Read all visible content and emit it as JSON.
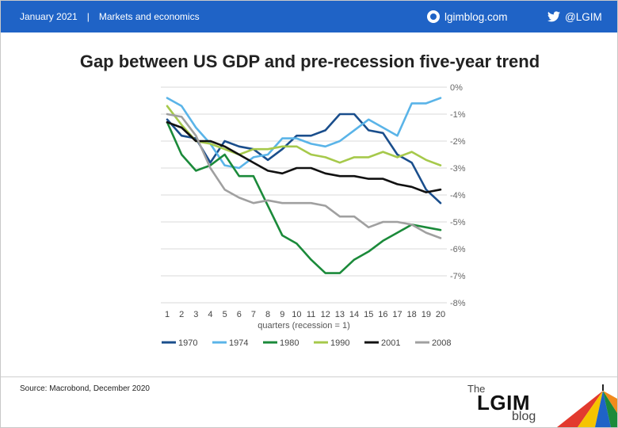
{
  "header": {
    "date": "January 2021",
    "separator": "|",
    "section": "Markets and economics",
    "site": "lgimblog.com",
    "twitter": "@LGIM",
    "site_icon": "globe-icon",
    "twitter_icon": "twitter-bird-icon"
  },
  "footer": {
    "source": "Source: Macrobond, December 2020"
  },
  "logo": {
    "the": "The",
    "name": "LGIM",
    "blog": "blog"
  },
  "chart_data": {
    "type": "line",
    "title": "Gap between US GDP and pre-recession five-year trend",
    "xlabel": "quarters (recession = 1)",
    "ylabel": "",
    "x": [
      1,
      2,
      3,
      4,
      5,
      6,
      7,
      8,
      9,
      10,
      11,
      12,
      13,
      14,
      15,
      16,
      17,
      18,
      19,
      20
    ],
    "ylim": [
      -8,
      0
    ],
    "yticks": [
      0,
      -1,
      -2,
      -3,
      -4,
      -5,
      -6,
      -7,
      -8
    ],
    "ytick_labels": [
      "0%",
      "-1%",
      "-2%",
      "-3%",
      "-4%",
      "-5%",
      "-6%",
      "-7%",
      "-8%"
    ],
    "y_axis_position": "right",
    "grid": "horizontal",
    "legend_position": "bottom",
    "series": [
      {
        "name": "1970",
        "color": "#1a4e8c",
        "values": [
          -1.2,
          -1.8,
          -1.9,
          -2.8,
          -2.0,
          -2.2,
          -2.3,
          -2.7,
          -2.3,
          -1.8,
          -1.8,
          -1.6,
          -1.0,
          -1.0,
          -1.6,
          -1.7,
          -2.5,
          -2.8,
          -3.8,
          -4.3
        ]
      },
      {
        "name": "1974",
        "color": "#5ab4e8",
        "values": [
          -0.4,
          -0.7,
          -1.5,
          -2.1,
          -2.9,
          -3.0,
          -2.6,
          -2.5,
          -1.9,
          -1.9,
          -2.1,
          -2.2,
          -2.0,
          -1.6,
          -1.2,
          -1.5,
          -1.8,
          -0.6,
          -0.6,
          -0.4
        ]
      },
      {
        "name": "1980",
        "color": "#1b8a3a",
        "values": [
          -1.3,
          -2.5,
          -3.1,
          -2.9,
          -2.5,
          -3.3,
          -3.3,
          -4.4,
          -5.5,
          -5.8,
          -6.4,
          -6.9,
          -6.9,
          -6.4,
          -6.1,
          -5.7,
          -5.4,
          -5.1,
          -5.2,
          -5.3
        ]
      },
      {
        "name": "1990",
        "color": "#a6c94b",
        "values": [
          -0.7,
          -1.4,
          -2.0,
          -2.1,
          -2.3,
          -2.5,
          -2.3,
          -2.3,
          -2.2,
          -2.2,
          -2.5,
          -2.6,
          -2.8,
          -2.6,
          -2.6,
          -2.4,
          -2.6,
          -2.4,
          -2.7,
          -2.9
        ]
      },
      {
        "name": "2001",
        "color": "#111111",
        "values": [
          -1.3,
          -1.5,
          -2.0,
          -2.0,
          -2.2,
          -2.5,
          -2.8,
          -3.1,
          -3.2,
          -3.0,
          -3.0,
          -3.2,
          -3.3,
          -3.3,
          -3.4,
          -3.4,
          -3.6,
          -3.7,
          -3.9,
          -3.8
        ]
      },
      {
        "name": "2008",
        "color": "#a0a0a0",
        "values": [
          -1.0,
          -1.1,
          -1.8,
          -3.0,
          -3.8,
          -4.1,
          -4.3,
          -4.2,
          -4.3,
          -4.3,
          -4.3,
          -4.4,
          -4.8,
          -4.8,
          -5.2,
          -5.0,
          -5.0,
          -5.1,
          -5.4,
          -5.6
        ]
      }
    ]
  }
}
